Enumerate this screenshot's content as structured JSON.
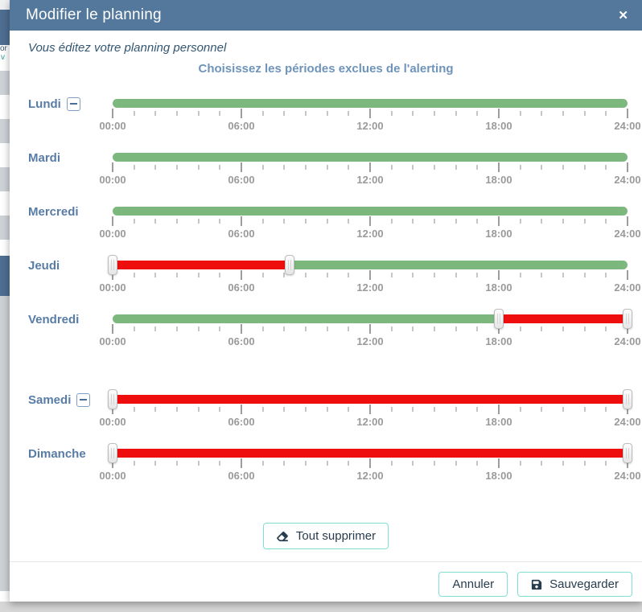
{
  "modal": {
    "title": "Modifier le planning",
    "close_glyph": "✕",
    "subtitle": "Vous éditez votre planning personnel",
    "heading": "Choisissez les périodes exclues de l'alerting"
  },
  "slider": {
    "tick_labels": [
      "00:00",
      "06:00",
      "12:00",
      "18:00",
      "24:00"
    ],
    "tick_count": 24,
    "major_every": 6
  },
  "days": [
    {
      "label": "Lundi",
      "removable": true,
      "excluded": []
    },
    {
      "label": "Mardi",
      "removable": false,
      "excluded": []
    },
    {
      "label": "Mercredi",
      "removable": false,
      "excluded": []
    },
    {
      "label": "Jeudi",
      "removable": false,
      "excluded": [
        {
          "start": "00:00",
          "end": "08:15"
        }
      ]
    },
    {
      "label": "Vendredi",
      "removable": false,
      "excluded": [
        {
          "start": "18:00",
          "end": "24:00"
        }
      ]
    },
    {
      "label": "Samedi",
      "removable": true,
      "excluded": [
        {
          "start": "00:00",
          "end": "24:00"
        }
      ],
      "extra_gap": true
    },
    {
      "label": "Dimanche",
      "removable": false,
      "excluded": [
        {
          "start": "00:00",
          "end": "24:00"
        }
      ]
    }
  ],
  "buttons": {
    "clear_all": "Tout supprimer",
    "cancel": "Annuler",
    "save": "Sauvegarder"
  },
  "background_page": {
    "fragments": {
      "a": "or",
      "b": "v"
    }
  },
  "colors": {
    "header_bg": "#54789b",
    "available_green": "#7cb87d",
    "excluded_red": "#ee0e0e",
    "accent_border_teal": "#7fe0d2",
    "button_text": "#273c4e",
    "day_label_blue": "#587ca6",
    "heading_blue": "#6f94ba",
    "tick_label_gray": "#9a9a9a"
  }
}
